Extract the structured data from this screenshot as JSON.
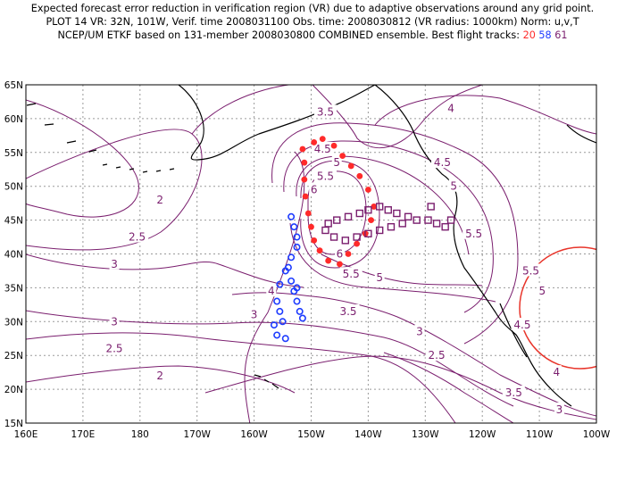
{
  "header": {
    "line1": "Expected forecast error reduction in verification region (VR) due to adaptive observations around any grid point.",
    "line2": "PLOT 14 VR: 32N, 101W, Verif. time 2008031100 Obs. time: 2008030812 (VR radius: 1000km) Norm: u,v,T",
    "line3_prefix": "NCEP/UM ETKF based on 131-member 2008030800 COMBINED ensemble.  Best flight tracks:",
    "tracks": [
      "20",
      "58",
      "61"
    ]
  },
  "colors": {
    "contour": "#7a1e6e",
    "track_20": "#ff2a2a",
    "track_58": "#1e3cff",
    "track_61": "#7a1e6e",
    "vr_circle": "#e8342a",
    "coast": "#000000",
    "grid": "#9a9a9a"
  },
  "axes": {
    "lon_labels": [
      "160E",
      "170E",
      "180",
      "170W",
      "160W",
      "150W",
      "140W",
      "130W",
      "120W",
      "110W",
      "100W"
    ],
    "lat_labels": [
      "65N",
      "60N",
      "55N",
      "50N",
      "45N",
      "40N",
      "35N",
      "30N",
      "25N",
      "20N",
      "15N"
    ],
    "lon_range": [
      160,
      260
    ],
    "lat_range": [
      15,
      65
    ]
  },
  "contour_labels": [
    {
      "text": "2",
      "lon": 183.5,
      "lat": 48.0
    },
    {
      "text": "2.5",
      "lon": 179.5,
      "lat": 42.5
    },
    {
      "text": "3",
      "lon": 175.5,
      "lat": 38.5
    },
    {
      "text": "3",
      "lon": 175.5,
      "lat": 30.0
    },
    {
      "text": "2.5",
      "lon": 175.5,
      "lat": 26.0
    },
    {
      "text": "2",
      "lon": 183.5,
      "lat": 22.0
    },
    {
      "text": "3",
      "lon": 200.0,
      "lat": 31.0
    },
    {
      "text": "3.5",
      "lon": 216.5,
      "lat": 31.5
    },
    {
      "text": "3",
      "lon": 229.0,
      "lat": 28.5
    },
    {
      "text": "2.5",
      "lon": 232.0,
      "lat": 25.0
    },
    {
      "text": "4",
      "lon": 203.0,
      "lat": 34.5
    },
    {
      "text": "4",
      "lon": 234.5,
      "lat": 61.5
    },
    {
      "text": "3.5",
      "lon": 212.5,
      "lat": 61.0
    },
    {
      "text": "4.5",
      "lon": 212.0,
      "lat": 55.5
    },
    {
      "text": "5",
      "lon": 214.5,
      "lat": 53.5
    },
    {
      "text": "5.5",
      "lon": 212.5,
      "lat": 51.5
    },
    {
      "text": "6",
      "lon": 210.5,
      "lat": 49.5
    },
    {
      "text": "6",
      "lon": 215.0,
      "lat": 40.0
    },
    {
      "text": "5.5",
      "lon": 217.0,
      "lat": 37.0
    },
    {
      "text": "5",
      "lon": 222.0,
      "lat": 36.5
    },
    {
      "text": "5.5",
      "lon": 248.5,
      "lat": 37.5
    },
    {
      "text": "5",
      "lon": 250.5,
      "lat": 34.5
    },
    {
      "text": "4.5",
      "lon": 233.0,
      "lat": 53.5
    },
    {
      "text": "5",
      "lon": 235.0,
      "lat": 50.0
    },
    {
      "text": "5.5",
      "lon": 238.5,
      "lat": 43.0
    },
    {
      "text": "4.5",
      "lon": 247.0,
      "lat": 29.5
    },
    {
      "text": "4",
      "lon": 253.0,
      "lat": 22.5
    },
    {
      "text": "3.5",
      "lon": 245.5,
      "lat": 19.5
    },
    {
      "text": "3",
      "lon": 253.5,
      "lat": 17.0
    }
  ],
  "tracks": {
    "track_20": [
      [
        208.5,
        55.5
      ],
      [
        208.8,
        53.5
      ],
      [
        208.8,
        51.0
      ],
      [
        209.0,
        48.5
      ],
      [
        209.5,
        46.0
      ],
      [
        210.0,
        44.0
      ],
      [
        210.5,
        42.0
      ],
      [
        211.5,
        40.5
      ],
      [
        213.0,
        39.0
      ],
      [
        215.0,
        38.5
      ],
      [
        216.5,
        40.0
      ],
      [
        218.0,
        41.5
      ],
      [
        219.5,
        43.0
      ],
      [
        220.5,
        45.0
      ],
      [
        221.0,
        47.0
      ],
      [
        220.0,
        49.5
      ],
      [
        218.5,
        51.5
      ],
      [
        217.0,
        53.0
      ],
      [
        215.5,
        54.5
      ],
      [
        214.0,
        56.0
      ],
      [
        212.0,
        57.0
      ],
      [
        210.5,
        56.5
      ]
    ],
    "track_58": [
      [
        206.5,
        45.5
      ],
      [
        207.0,
        44.0
      ],
      [
        207.5,
        42.5
      ],
      [
        207.5,
        41.0
      ],
      [
        206.5,
        39.5
      ],
      [
        206.0,
        38.0
      ],
      [
        206.5,
        36.0
      ],
      [
        207.0,
        34.5
      ],
      [
        207.5,
        33.0
      ],
      [
        208.0,
        31.5
      ],
      [
        208.5,
        30.5
      ],
      [
        205.0,
        30.0
      ],
      [
        204.5,
        31.5
      ],
      [
        204.0,
        33.0
      ],
      [
        205.5,
        27.5
      ],
      [
        204.0,
        28.0
      ],
      [
        203.5,
        29.5
      ],
      [
        207.5,
        35.0
      ],
      [
        204.5,
        35.5
      ],
      [
        205.5,
        37.5
      ]
    ],
    "track_61": [
      [
        213.0,
        44.5
      ],
      [
        214.5,
        45.0
      ],
      [
        216.5,
        45.5
      ],
      [
        218.5,
        46.0
      ],
      [
        220.0,
        46.5
      ],
      [
        222.0,
        47.0
      ],
      [
        223.5,
        46.5
      ],
      [
        225.0,
        46.0
      ],
      [
        227.0,
        45.5
      ],
      [
        228.5,
        45.0
      ],
      [
        230.5,
        45.0
      ],
      [
        232.0,
        44.5
      ],
      [
        233.5,
        44.0
      ],
      [
        234.5,
        45.0
      ],
      [
        226.0,
        44.5
      ],
      [
        224.0,
        44.0
      ],
      [
        222.0,
        43.5
      ],
      [
        220.0,
        43.0
      ],
      [
        218.0,
        42.5
      ],
      [
        216.0,
        42.0
      ],
      [
        214.0,
        42.5
      ],
      [
        212.5,
        43.5
      ],
      [
        231.0,
        47.0
      ]
    ]
  }
}
